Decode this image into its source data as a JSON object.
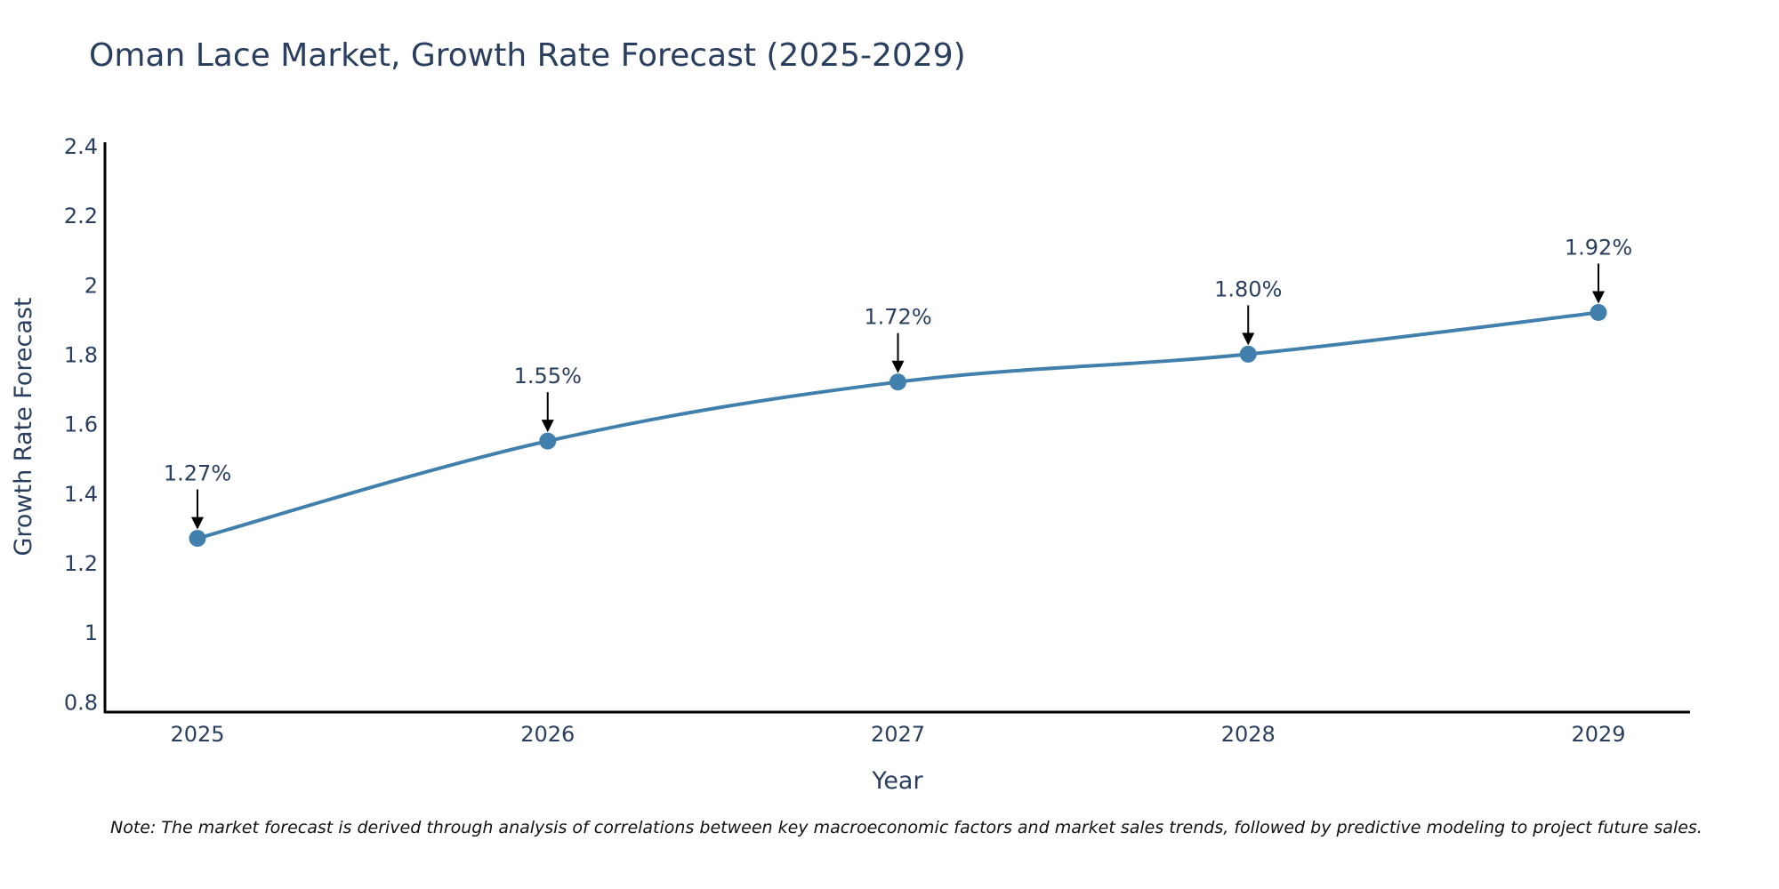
{
  "chart_data": {
    "type": "line",
    "title": "Oman Lace Market, Growth Rate Forecast (2025-2029)",
    "xlabel": "Year",
    "ylabel": "Growth Rate Forecast",
    "categories": [
      "2025",
      "2026",
      "2027",
      "2028",
      "2029"
    ],
    "values": [
      1.27,
      1.55,
      1.72,
      1.8,
      1.92
    ],
    "data_labels": [
      "1.27%",
      "1.55%",
      "1.72%",
      "1.80%",
      "1.92%"
    ],
    "ylim": [
      0.77,
      2.41
    ],
    "yticks": [
      0.8,
      1,
      1.2,
      1.4,
      1.6,
      1.8,
      2,
      2.2,
      2.4
    ],
    "ytick_labels": [
      "0.8",
      "1",
      "1.2",
      "1.4",
      "1.6",
      "1.8",
      "2",
      "2.2",
      "2.4"
    ],
    "line_color": "#4180ad",
    "marker_color": "#4180ad",
    "grid": false,
    "note": "Note: The market forecast is derived through analysis of correlations between key macroeconomic factors and market sales trends, followed by predictive modeling to project future sales."
  }
}
